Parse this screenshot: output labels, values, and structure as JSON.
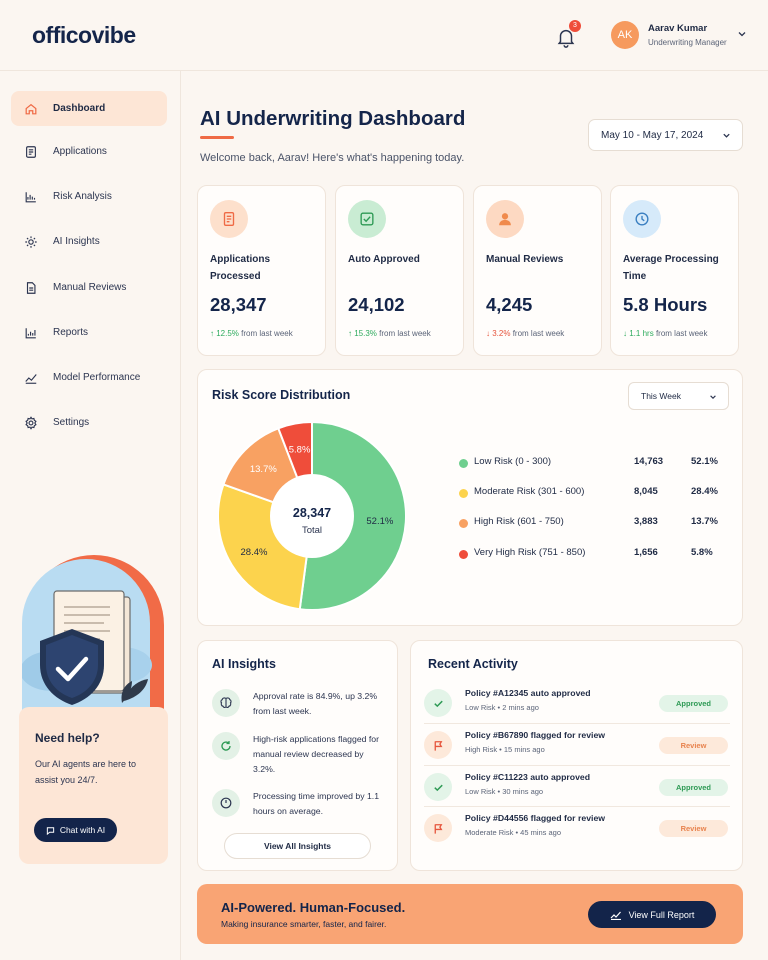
{
  "header": {
    "logo": "officovibe",
    "notification_count": "3",
    "user": {
      "initials": "AK",
      "name": "Aarav Kumar",
      "role": "Underwriting Manager"
    }
  },
  "sidebar": {
    "items": [
      {
        "label": "Dashboard",
        "icon": "home-icon",
        "active": true
      },
      {
        "label": "Applications",
        "icon": "document-icon"
      },
      {
        "label": "Risk Analysis",
        "icon": "chart-icon"
      },
      {
        "label": "AI Insights",
        "icon": "sparkle-icon"
      },
      {
        "label": "Manual Reviews",
        "icon": "document-icon"
      },
      {
        "label": "Reports",
        "icon": "bar-chart-icon"
      },
      {
        "label": "Model Performance",
        "icon": "trend-icon"
      },
      {
        "label": "Settings",
        "icon": "gear-icon"
      }
    ],
    "help": {
      "title": "Need help?",
      "text": "Our AI agents are here to assist you 24/7.",
      "button": "Chat with AI"
    }
  },
  "main": {
    "title": "AI Underwriting Dashboard",
    "welcome": "Welcome back, Aarav! Here's what's happening today.",
    "date_range": "May 10 - May 17, 2024",
    "stats": [
      {
        "label": "Applications Processed",
        "value": "28,347",
        "change": "12.5%",
        "suffix": "from last week",
        "direction": "up",
        "icon": "document-icon"
      },
      {
        "label": "Auto Approved",
        "value": "24,102",
        "change": "15.3%",
        "suffix": "from last week",
        "direction": "up",
        "icon": "check-icon"
      },
      {
        "label": "Manual Reviews",
        "value": "4,245",
        "change": "3.2%",
        "suffix": "from last week",
        "direction": "down",
        "icon": "user-icon"
      },
      {
        "label": "Average Processing Time",
        "value": "5.8 Hours",
        "change": "1.1 hrs",
        "suffix": "from last week",
        "direction": "down",
        "icon": "clock-icon"
      }
    ],
    "risk": {
      "title": "Risk Score Distribution",
      "period": "This Week",
      "total_value": "28,347",
      "total_label": "Total"
    },
    "ai_insights": {
      "title": "AI Insights",
      "items": [
        {
          "text": "Approval rate is 84.9%, up 3.2% from last week.",
          "icon": "brain-icon"
        },
        {
          "text": "High-risk applications flagged for manual review decreased by 3.2%.",
          "icon": "refresh-icon"
        },
        {
          "text": "Processing time improved by 1.1 hours on average.",
          "icon": "timer-icon"
        }
      ],
      "button": "View All Insights"
    },
    "activity": {
      "title": "Recent Activity",
      "items": [
        {
          "title": "Policy #A12345 auto approved",
          "risk": "Low Risk",
          "time": "2 mins ago",
          "status": "Approved"
        },
        {
          "title": "Policy #B67890 flagged for review",
          "risk": "High Risk",
          "time": "15 mins ago",
          "status": "Review"
        },
        {
          "title": "Policy #C11223 auto approved",
          "risk": "Low Risk",
          "time": "30 mins ago",
          "status": "Approved"
        },
        {
          "title": "Policy #D44556 flagged for review",
          "risk": "Moderate Risk",
          "time": "45 mins ago",
          "status": "Review"
        }
      ]
    },
    "banner": {
      "title": "AI-Powered. Human-Focused.",
      "subtitle": "Making insurance smarter, faster, and fairer.",
      "button": "View Full Report"
    }
  },
  "colors": {
    "low": "#6fcf8f",
    "moderate": "#fcd34d",
    "high": "#f8a162",
    "very_high": "#ef4d3a",
    "navy": "#13244a",
    "accent": "#ef6a45"
  },
  "chart_data": {
    "type": "pie",
    "title": "Risk Score Distribution",
    "categories": [
      "Low Risk (0 - 300)",
      "Moderate Risk (301 - 600)",
      "High Risk (601 - 750)",
      "Very High Risk (751 - 850)"
    ],
    "values": [
      14763,
      8045,
      3883,
      1656
    ],
    "percent_labels": [
      "52.1%",
      "28.4%",
      "13.7%",
      "5.8%"
    ],
    "count_labels": [
      "14,763",
      "8,045",
      "3,883",
      "1,656"
    ],
    "colors": [
      "#6fcf8f",
      "#fcd34d",
      "#f8a162",
      "#ef4d3a"
    ],
    "legend": "right"
  }
}
